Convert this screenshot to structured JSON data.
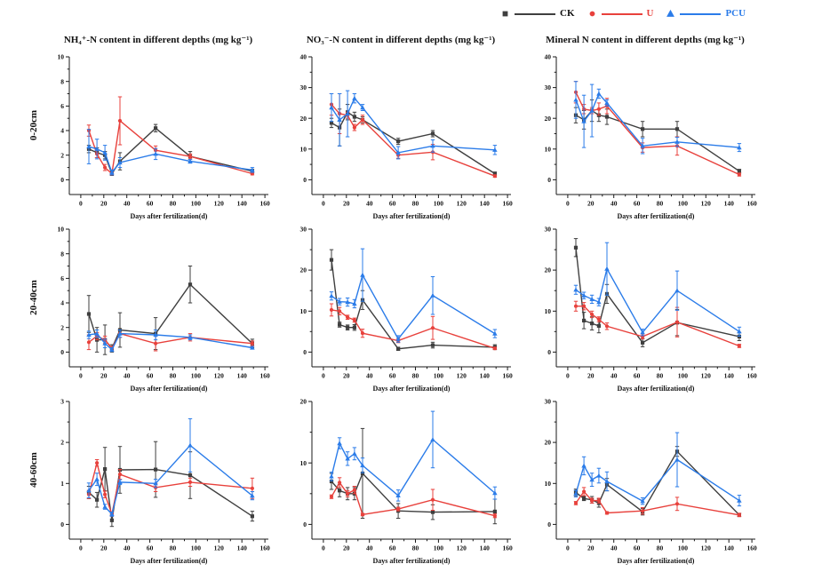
{
  "figure": {
    "legend": [
      {
        "label": "CK",
        "marker": "square",
        "color": "#3f3f3f",
        "label_color": "#111111"
      },
      {
        "label": "U",
        "marker": "circle",
        "color": "#e8413c",
        "label_color": "#e8413c"
      },
      {
        "label": "PCU",
        "marker": "triangle",
        "color": "#2b7ce9",
        "label_color": "#2b7ce9"
      }
    ],
    "column_titles": [
      "NH₄⁺-N content in different depths (mg kg⁻¹)",
      "NO₃⁻-N content in different depths (mg kg⁻¹)",
      "Mineral N content in different depths (mg kg⁻¹)"
    ],
    "row_labels": [
      "0-20cm",
      "20-40cm",
      "40-60cm"
    ],
    "xlabel": "Days after fertilization(d)"
  },
  "chart_data": [
    {
      "type": "line",
      "name": "nh4-0-20",
      "title": "NH₄⁺-N content in different depths (mg kg⁻¹)",
      "depth": "0-20cm",
      "xlabel": "Days after fertilization(d)",
      "xlim": [
        0,
        160
      ],
      "xticks": [
        0,
        20,
        40,
        60,
        80,
        100,
        120,
        140,
        160
      ],
      "ylim": [
        0,
        10
      ],
      "yticks": [
        0,
        2,
        4,
        6,
        8,
        10
      ],
      "grid": false,
      "x": [
        7,
        14,
        21,
        27,
        34,
        65,
        95,
        149
      ],
      "series": [
        {
          "name": "CK",
          "marker": "square",
          "color": "#3f3f3f",
          "y": [
            2.5,
            2.2,
            2.0,
            0.5,
            1.5,
            4.2,
            1.9,
            0.7
          ],
          "err": [
            0.3,
            0.4,
            0.3,
            0.15,
            0.7,
            0.3,
            0.4,
            0.15
          ]
        },
        {
          "name": "U",
          "marker": "circle",
          "color": "#e8413c",
          "y": [
            4.0,
            2.1,
            1.0,
            0.5,
            4.8,
            2.4,
            1.9,
            0.5
          ],
          "err": [
            0.45,
            0.3,
            0.25,
            0.1,
            1.95,
            0.35,
            0.2,
            0.1
          ]
        },
        {
          "name": "PCU",
          "marker": "triangle",
          "color": "#2b7ce9",
          "y": [
            2.7,
            2.5,
            2.2,
            0.6,
            1.4,
            2.1,
            1.5,
            0.8
          ],
          "err": [
            1.4,
            0.8,
            0.6,
            0.2,
            0.4,
            0.45,
            0.15,
            0.2
          ]
        }
      ]
    },
    {
      "type": "line",
      "name": "no3-0-20",
      "title": "NO₃⁻-N content in different depths (mg kg⁻¹)",
      "depth": "0-20cm",
      "xlabel": "Days after fertilization(d)",
      "xlim": [
        0,
        160
      ],
      "xticks": [
        0,
        20,
        40,
        60,
        80,
        100,
        120,
        140,
        160
      ],
      "ylim": [
        0,
        40
      ],
      "yticks": [
        0,
        10,
        20,
        30,
        40
      ],
      "grid": false,
      "x": [
        7,
        14,
        21,
        27,
        34,
        65,
        95,
        149
      ],
      "series": [
        {
          "name": "CK",
          "marker": "square",
          "color": "#3f3f3f",
          "y": [
            18.5,
            17.0,
            22.0,
            20.5,
            19.5,
            12.5,
            15.0,
            2.0
          ],
          "err": [
            1.5,
            6.0,
            2.5,
            1.5,
            1.0,
            1.0,
            1.0,
            0.5
          ]
        },
        {
          "name": "U",
          "marker": "circle",
          "color": "#e8413c",
          "y": [
            24.5,
            21.5,
            21.0,
            17.0,
            19.5,
            8.0,
            9.0,
            1.2
          ],
          "err": [
            3.5,
            6.5,
            1.0,
            1.0,
            1.5,
            1.0,
            2.5,
            0.4
          ]
        },
        {
          "name": "PCU",
          "marker": "triangle",
          "color": "#2b7ce9",
          "y": [
            23.5,
            19.5,
            21.5,
            26.5,
            23.5,
            8.8,
            11.0,
            9.7
          ],
          "err": [
            4.5,
            8.5,
            7.5,
            1.5,
            1.0,
            2.0,
            2.0,
            1.5
          ]
        }
      ]
    },
    {
      "type": "line",
      "name": "mineral-0-20",
      "title": "Mineral N content in different depths (mg kg⁻¹)",
      "depth": "0-20cm",
      "xlabel": "Days after fertilization(d)",
      "xlim": [
        0,
        160
      ],
      "xticks": [
        0,
        20,
        40,
        60,
        80,
        100,
        120,
        140,
        160
      ],
      "ylim": [
        0,
        40
      ],
      "yticks": [
        0,
        10,
        20,
        30,
        40
      ],
      "grid": false,
      "x": [
        7,
        14,
        21,
        27,
        34,
        65,
        95,
        149
      ],
      "series": [
        {
          "name": "CK",
          "marker": "square",
          "color": "#3f3f3f",
          "y": [
            21.0,
            19.5,
            22.5,
            21.0,
            20.5,
            16.5,
            16.5,
            2.8
          ],
          "err": [
            2.5,
            3.0,
            3.5,
            2.0,
            2.5,
            2.5,
            2.5,
            0.6
          ]
        },
        {
          "name": "U",
          "marker": "circle",
          "color": "#e8413c",
          "y": [
            28.5,
            23.0,
            22.5,
            23.0,
            24.0,
            10.5,
            11.0,
            1.7
          ],
          "err": [
            3.5,
            1.5,
            1.0,
            2.0,
            2.5,
            1.5,
            3.0,
            0.5
          ]
        },
        {
          "name": "PCU",
          "marker": "triangle",
          "color": "#2b7ce9",
          "y": [
            26.0,
            19.0,
            22.5,
            28.0,
            25.0,
            11.0,
            12.3,
            10.5
          ],
          "err": [
            6.0,
            8.5,
            8.5,
            1.5,
            1.0,
            2.5,
            1.5,
            1.3
          ]
        }
      ]
    },
    {
      "type": "line",
      "name": "nh4-20-40",
      "title": "NH₄⁺-N content in different depths (mg kg⁻¹)",
      "depth": "20-40cm",
      "xlabel": "Days after fertilization(d)",
      "xlim": [
        0,
        160
      ],
      "xticks": [
        0,
        20,
        40,
        60,
        80,
        100,
        120,
        140,
        160
      ],
      "ylim": [
        0,
        10
      ],
      "yticks": [
        0,
        2,
        4,
        6,
        8,
        10
      ],
      "grid": false,
      "x": [
        7,
        14,
        21,
        27,
        34,
        65,
        95,
        149
      ],
      "series": [
        {
          "name": "CK",
          "marker": "square",
          "color": "#3f3f3f",
          "y": [
            3.1,
            1.0,
            1.0,
            0.3,
            1.8,
            1.5,
            5.5,
            0.7
          ],
          "err": [
            1.5,
            1.0,
            1.2,
            0.3,
            1.4,
            1.3,
            1.5,
            0.35
          ]
        },
        {
          "name": "U",
          "marker": "circle",
          "color": "#e8413c",
          "y": [
            0.8,
            1.3,
            1.0,
            0.3,
            1.5,
            0.7,
            1.2,
            0.7
          ],
          "err": [
            0.6,
            0.3,
            0.3,
            0.15,
            0.3,
            0.6,
            0.3,
            0.2
          ]
        },
        {
          "name": "PCU",
          "marker": "triangle",
          "color": "#2b7ce9",
          "y": [
            1.4,
            1.5,
            0.7,
            0.2,
            1.5,
            1.4,
            1.2,
            0.35
          ],
          "err": [
            0.3,
            0.3,
            0.35,
            0.15,
            0.3,
            0.4,
            0.2,
            0.1
          ]
        }
      ]
    },
    {
      "type": "line",
      "name": "no3-20-40",
      "title": "NO₃⁻-N content in different depths (mg kg⁻¹)",
      "depth": "20-40cm",
      "xlabel": "Days after fertilization(d)",
      "xlim": [
        0,
        160
      ],
      "xticks": [
        0,
        20,
        40,
        60,
        80,
        100,
        120,
        140,
        160
      ],
      "ylim": [
        0,
        30
      ],
      "yticks": [
        0,
        10,
        20,
        30
      ],
      "grid": false,
      "x": [
        7,
        14,
        21,
        27,
        34,
        65,
        95,
        149
      ],
      "series": [
        {
          "name": "CK",
          "marker": "square",
          "color": "#3f3f3f",
          "y": [
            22.5,
            6.7,
            6.0,
            6.0,
            12.7,
            0.8,
            1.7,
            1.2
          ],
          "err": [
            2.5,
            0.6,
            0.6,
            0.7,
            2.3,
            0.4,
            0.7,
            0.6
          ]
        },
        {
          "name": "U",
          "marker": "circle",
          "color": "#e8413c",
          "y": [
            10.3,
            10.0,
            8.5,
            7.8,
            4.6,
            2.8,
            5.9,
            0.9
          ],
          "err": [
            1.5,
            0.9,
            0.5,
            0.5,
            1.0,
            0.5,
            2.8,
            0.3
          ]
        },
        {
          "name": "PCU",
          "marker": "triangle",
          "color": "#2b7ce9",
          "y": [
            13.7,
            12.3,
            12.2,
            11.8,
            18.8,
            3.2,
            13.8,
            4.5
          ],
          "err": [
            1.0,
            0.8,
            1.0,
            1.0,
            6.4,
            0.8,
            4.6,
            1.0
          ]
        }
      ]
    },
    {
      "type": "line",
      "name": "mineral-20-40",
      "title": "Mineral N content in different depths (mg kg⁻¹)",
      "depth": "20-40cm",
      "xlabel": "Days after fertilization(d)",
      "xlim": [
        0,
        160
      ],
      "xticks": [
        0,
        20,
        40,
        60,
        80,
        100,
        120,
        140,
        160
      ],
      "ylim": [
        0,
        30
      ],
      "yticks": [
        0,
        10,
        20,
        30
      ],
      "grid": false,
      "x": [
        7,
        14,
        21,
        27,
        34,
        65,
        95,
        149
      ],
      "series": [
        {
          "name": "CK",
          "marker": "square",
          "color": "#3f3f3f",
          "y": [
            25.5,
            7.7,
            7.0,
            6.4,
            14.2,
            2.3,
            7.2,
            3.8
          ],
          "err": [
            2.2,
            2.0,
            1.6,
            1.7,
            2.3,
            1.0,
            3.2,
            1.0
          ]
        },
        {
          "name": "U",
          "marker": "circle",
          "color": "#e8413c",
          "y": [
            11.2,
            11.2,
            9.2,
            8.0,
            6.3,
            3.8,
            7.3,
            1.5
          ],
          "err": [
            1.2,
            0.9,
            0.8,
            0.6,
            0.8,
            0.6,
            3.6,
            0.4
          ]
        },
        {
          "name": "PCU",
          "marker": "triangle",
          "color": "#2b7ce9",
          "y": [
            15.2,
            13.8,
            12.9,
            12.2,
            20.3,
            4.8,
            15.0,
            5.0
          ],
          "err": [
            1.1,
            0.8,
            1.0,
            0.9,
            6.4,
            0.8,
            4.8,
            1.1
          ]
        }
      ]
    },
    {
      "type": "line",
      "name": "nh4-40-60",
      "title": "NH₄⁺-N content in different depths (mg kg⁻¹)",
      "depth": "40-60cm",
      "xlabel": "Days after fertilization(d)",
      "xlim": [
        0,
        160
      ],
      "xticks": [
        0,
        20,
        40,
        60,
        80,
        100,
        120,
        140,
        160
      ],
      "ylim": [
        0,
        3
      ],
      "yticks": [
        0,
        1,
        2,
        3
      ],
      "grid": false,
      "x": [
        7,
        14,
        21,
        27,
        34,
        65,
        95,
        149
      ],
      "series": [
        {
          "name": "CK",
          "marker": "square",
          "color": "#3f3f3f",
          "y": [
            0.78,
            0.6,
            1.35,
            0.1,
            1.33,
            1.34,
            1.2,
            0.2
          ],
          "err": [
            0.15,
            0.18,
            0.53,
            0.15,
            0.57,
            0.68,
            0.57,
            0.12
          ]
        },
        {
          "name": "U",
          "marker": "circle",
          "color": "#e8413c",
          "y": [
            0.73,
            1.5,
            0.73,
            0.25,
            1.22,
            0.9,
            1.03,
            0.88
          ],
          "err": [
            0.1,
            0.08,
            0.08,
            0.05,
            0.12,
            0.1,
            0.1,
            0.25
          ]
        },
        {
          "name": "PCU",
          "marker": "triangle",
          "color": "#2b7ce9",
          "y": [
            0.83,
            1.1,
            0.43,
            0.25,
            1.03,
            1.0,
            1.93,
            0.7
          ],
          "err": [
            0.18,
            0.15,
            0.06,
            0.05,
            0.06,
            0.1,
            0.65,
            0.1
          ]
        }
      ]
    },
    {
      "type": "line",
      "name": "no3-40-60",
      "title": "NO₃⁻-N content in different depths (mg kg⁻¹)",
      "depth": "40-60cm",
      "xlabel": "Days after fertilization(d)",
      "xlim": [
        0,
        160
      ],
      "xticks": [
        0,
        20,
        40,
        60,
        80,
        100,
        120,
        140,
        160
      ],
      "ylim": [
        0,
        20
      ],
      "yticks": [
        0,
        10,
        20
      ],
      "grid": false,
      "x": [
        7,
        14,
        21,
        27,
        34,
        65,
        95,
        149
      ],
      "series": [
        {
          "name": "CK",
          "marker": "square",
          "color": "#3f3f3f",
          "y": [
            7.0,
            5.5,
            5.0,
            5.0,
            8.3,
            2.2,
            2.0,
            2.1
          ],
          "err": [
            1.3,
            1.0,
            1.0,
            1.0,
            7.3,
            1.2,
            1.2,
            2.0
          ]
        },
        {
          "name": "U",
          "marker": "circle",
          "color": "#e8413c",
          "y": [
            4.5,
            6.8,
            5.0,
            5.6,
            1.6,
            2.5,
            4.0,
            1.4
          ],
          "err": [
            0.3,
            0.8,
            0.5,
            0.6,
            0.2,
            0.3,
            1.7,
            0.3
          ]
        },
        {
          "name": "PCU",
          "marker": "triangle",
          "color": "#2b7ce9",
          "y": [
            7.8,
            13.2,
            10.7,
            11.5,
            9.6,
            4.7,
            13.8,
            5.1
          ],
          "err": [
            0.7,
            0.9,
            1.1,
            1.0,
            1.2,
            0.9,
            4.6,
            1.0
          ]
        }
      ]
    },
    {
      "type": "line",
      "name": "mineral-40-60",
      "title": "Mineral N content in different depths (mg kg⁻¹)",
      "depth": "40-60cm",
      "xlabel": "Days after fertilization(d)",
      "xlim": [
        0,
        160
      ],
      "xticks": [
        0,
        20,
        40,
        60,
        80,
        100,
        120,
        140,
        160
      ],
      "ylim": [
        0,
        30
      ],
      "yticks": [
        0,
        10,
        20,
        30
      ],
      "grid": false,
      "x": [
        7,
        14,
        21,
        27,
        34,
        65,
        95,
        149
      ],
      "series": [
        {
          "name": "CK",
          "marker": "square",
          "color": "#3f3f3f",
          "y": [
            7.8,
            6.3,
            6.0,
            5.2,
            9.7,
            3.1,
            17.8,
            2.3
          ],
          "err": [
            0.8,
            0.5,
            0.8,
            1.0,
            1.5,
            0.8,
            1.2,
            0.4
          ]
        },
        {
          "name": "U",
          "marker": "circle",
          "color": "#e8413c",
          "y": [
            5.2,
            8.0,
            5.8,
            5.8,
            2.8,
            3.3,
            5.0,
            2.3
          ],
          "err": [
            0.4,
            1.0,
            0.6,
            0.6,
            0.3,
            0.8,
            1.6,
            0.4
          ]
        },
        {
          "name": "PCU",
          "marker": "triangle",
          "color": "#2b7ce9",
          "y": [
            7.5,
            14.3,
            10.9,
            11.9,
            10.5,
            5.7,
            15.8,
            5.8
          ],
          "err": [
            0.8,
            2.2,
            1.6,
            1.8,
            2.3,
            0.8,
            6.6,
            1.3
          ]
        }
      ]
    }
  ]
}
